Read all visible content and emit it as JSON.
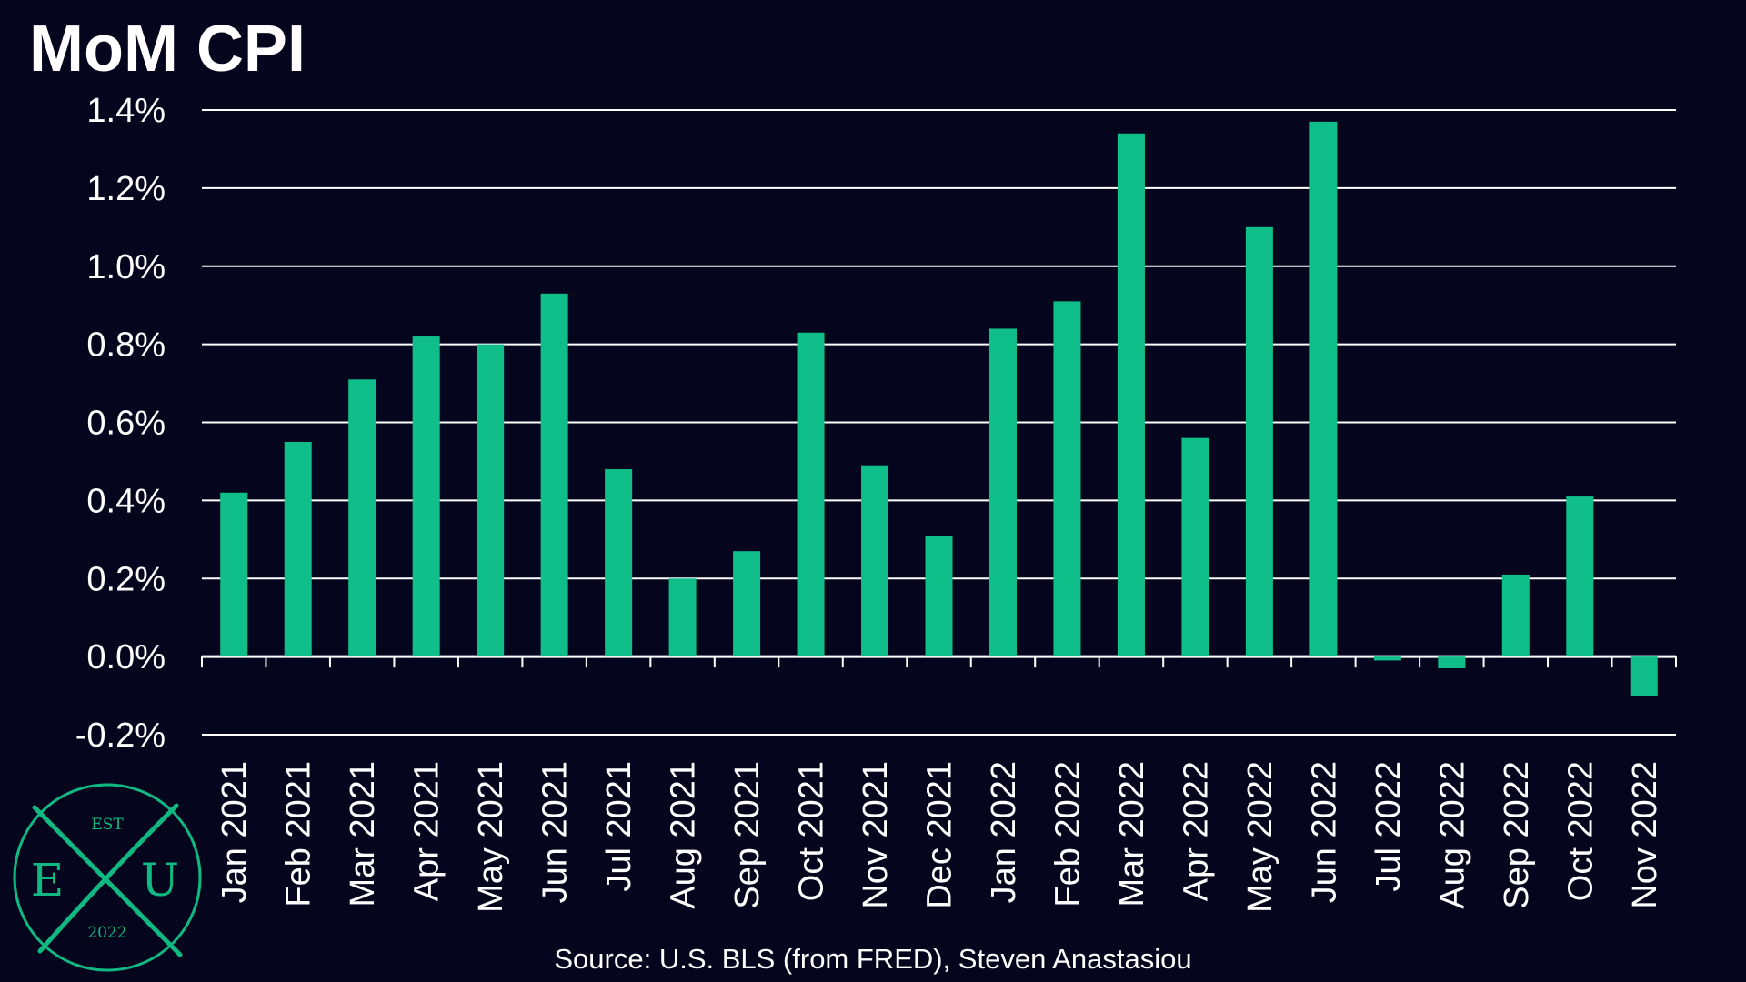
{
  "colors": {
    "background": "#05061e",
    "bar": "#10be8a",
    "grid": "#ffffff",
    "text": "#ffffff",
    "logo": "#10b981"
  },
  "source": "Source: U.S. BLS (from FRED), Steven Anastasiou",
  "logo": {
    "top": "EST",
    "left": "E",
    "center": "X",
    "right": "U",
    "bottom": "2022"
  },
  "chart_data": {
    "type": "bar",
    "title": "MoM CPI",
    "xlabel": "",
    "ylabel": "",
    "ylim": [
      -0.2,
      1.4
    ],
    "yticks": [
      1.4,
      1.2,
      1.0,
      0.8,
      0.6,
      0.4,
      0.2,
      0.0,
      -0.2
    ],
    "ytick_labels": [
      "1.4%",
      "1.2%",
      "1.0%",
      "0.8%",
      "0.6%",
      "0.4%",
      "0.2%",
      "0.0%",
      "-0.2%"
    ],
    "grid": true,
    "legend": "none",
    "categories": [
      "Jan 2021",
      "Feb 2021",
      "Mar 2021",
      "Apr 2021",
      "May 2021",
      "Jun 2021",
      "Jul 2021",
      "Aug 2021",
      "Sep 2021",
      "Oct 2021",
      "Nov 2021",
      "Dec 2021",
      "Jan 2022",
      "Feb 2022",
      "Mar 2022",
      "Apr 2022",
      "May 2022",
      "Jun 2022",
      "Jul 2022",
      "Aug 2022",
      "Sep 2022",
      "Oct 2022",
      "Nov 2022"
    ],
    "values": [
      0.42,
      0.55,
      0.71,
      0.82,
      0.8,
      0.93,
      0.48,
      0.2,
      0.27,
      0.83,
      0.49,
      0.31,
      0.84,
      0.91,
      1.34,
      0.56,
      1.1,
      1.37,
      -0.01,
      -0.03,
      0.21,
      0.41,
      -0.1
    ]
  }
}
